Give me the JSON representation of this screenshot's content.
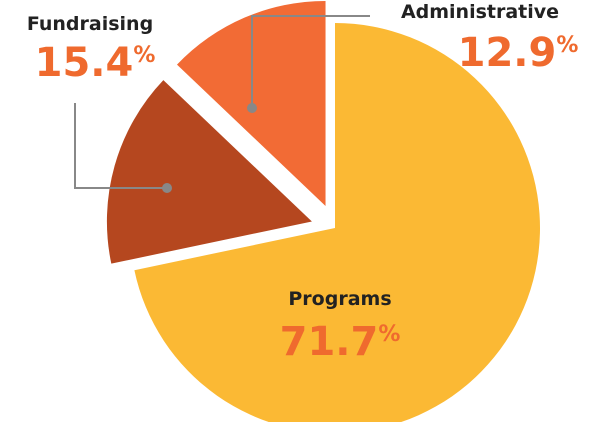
{
  "chart_data": {
    "type": "pie",
    "categories": [
      "Programs",
      "Fundraising",
      "Administrative"
    ],
    "values": [
      71.7,
      15.4,
      12.9
    ],
    "value_labels": [
      "71.7%",
      "15.4%",
      "12.9%"
    ],
    "colors": [
      "#fbb934",
      "#b5471f",
      "#f26b35"
    ],
    "explode": [
      false,
      true,
      true
    ]
  }
}
